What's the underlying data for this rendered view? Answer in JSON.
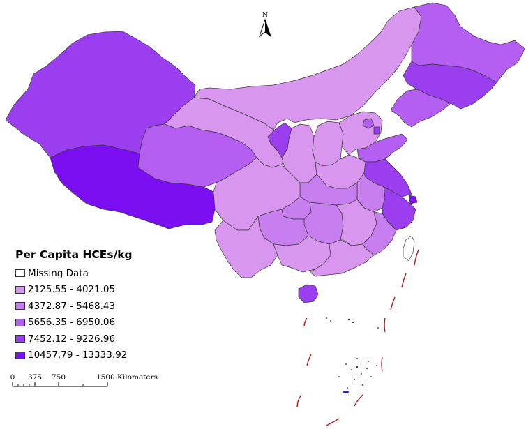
{
  "north_arrow": {
    "label": "N"
  },
  "legend": {
    "title": "Per Capita HCEs/kg",
    "items": [
      {
        "label": "Missing Data",
        "color": "#ffffff"
      },
      {
        "label": "2125.55 - 4021.05",
        "color": "#d996ee"
      },
      {
        "label": "4372.87 - 5468.43",
        "color": "#c77ff0"
      },
      {
        "label": "5656.35 - 6950.06",
        "color": "#b45ff1"
      },
      {
        "label": "7452.12 - 9226.96",
        "color": "#9b3ef0"
      },
      {
        "label": "10457.79 - 13333.92",
        "color": "#7b0ff2"
      }
    ]
  },
  "scale_bar": {
    "ticks": [
      "0",
      "375",
      "750",
      "1500 Kilometers"
    ]
  }
}
